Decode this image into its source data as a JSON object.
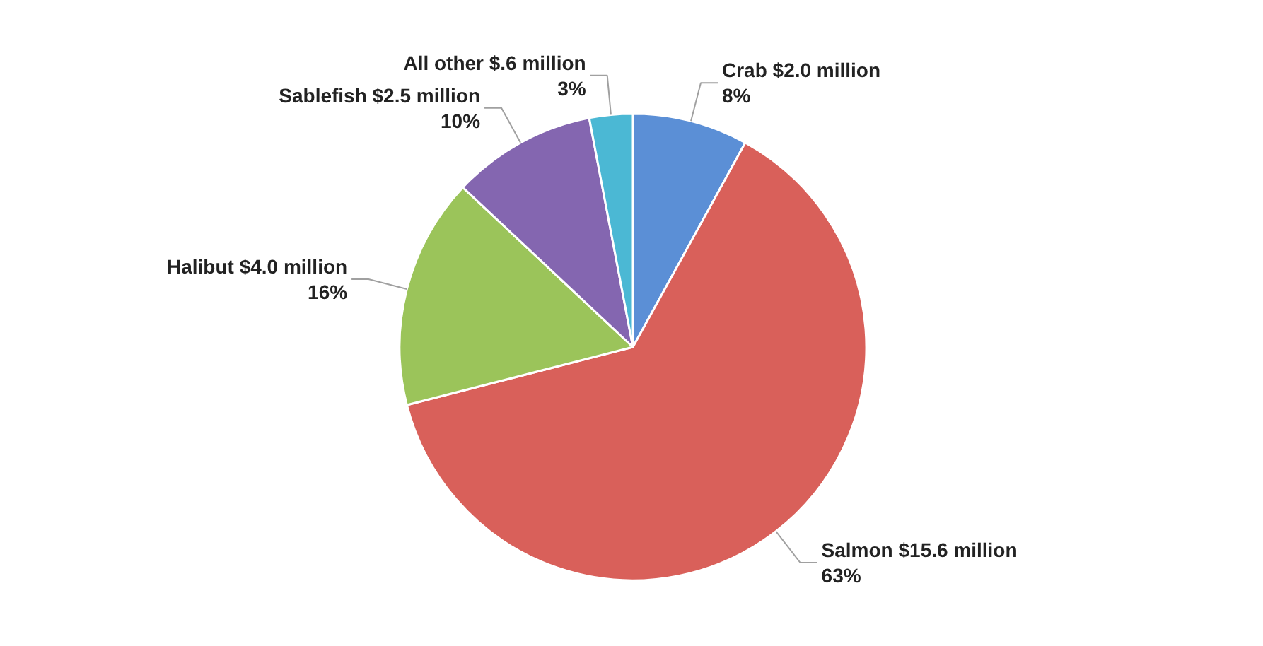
{
  "chart_data": {
    "type": "pie",
    "categories": [
      "Crab $2.0 million",
      "Salmon $15.6 million",
      "Halibut $4.0 million",
      "Sablefish $2.5 million",
      "All other $.6 million"
    ],
    "values": [
      8,
      63,
      16,
      10,
      3
    ],
    "value_labels": [
      "8%",
      "63%",
      "16%",
      "10%",
      "3%"
    ],
    "colors": [
      "#5b8fd6",
      "#d9605a",
      "#9bc45a",
      "#8466b0",
      "#4bb8d4"
    ]
  }
}
